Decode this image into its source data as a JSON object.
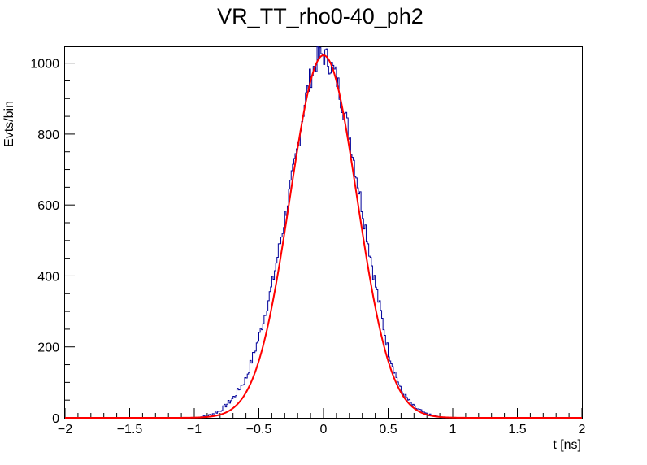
{
  "chart_data": {
    "type": "histogram",
    "title": "VR_TT_rho0-40_ph2",
    "xlabel": "t [ns]",
    "ylabel": "Evts/bin",
    "xlim": [
      -2,
      2
    ],
    "ylim": [
      0,
      1045
    ],
    "x_ticks": [
      {
        "value": -2,
        "label": "−2"
      },
      {
        "value": -1.5,
        "label": "−1.5"
      },
      {
        "value": -1,
        "label": "−1"
      },
      {
        "value": -0.5,
        "label": "−0.5"
      },
      {
        "value": 0,
        "label": "0"
      },
      {
        "value": 0.5,
        "label": "0.5"
      },
      {
        "value": 1,
        "label": "1"
      },
      {
        "value": 1.5,
        "label": "1.5"
      },
      {
        "value": 2,
        "label": "2"
      }
    ],
    "y_ticks": [
      {
        "value": 0,
        "label": "0"
      },
      {
        "value": 200,
        "label": "200"
      },
      {
        "value": 400,
        "label": "400"
      },
      {
        "value": 600,
        "label": "600"
      },
      {
        "value": 800,
        "label": "800"
      },
      {
        "value": 1000,
        "label": "1000"
      }
    ],
    "histogram": {
      "color": "#000099",
      "x": [
        -1.0,
        -0.9,
        -0.8,
        -0.7,
        -0.6,
        -0.5,
        -0.4,
        -0.3,
        -0.2,
        -0.15,
        -0.1,
        -0.05,
        0.0,
        0.05,
        0.1,
        0.2,
        0.3,
        0.4,
        0.5,
        0.6,
        0.7,
        0.8,
        0.9,
        1.0
      ],
      "y": [
        0,
        5,
        20,
        55,
        110,
        225,
        370,
        560,
        760,
        880,
        960,
        1010,
        1025,
        1000,
        960,
        800,
        590,
        380,
        190,
        75,
        30,
        10,
        2,
        0
      ]
    },
    "fit": {
      "type": "gaussian",
      "color": "#ff0000",
      "amplitude": 1022,
      "mean": 0.0,
      "sigma": 0.26
    },
    "grid": false,
    "legend": "none"
  }
}
